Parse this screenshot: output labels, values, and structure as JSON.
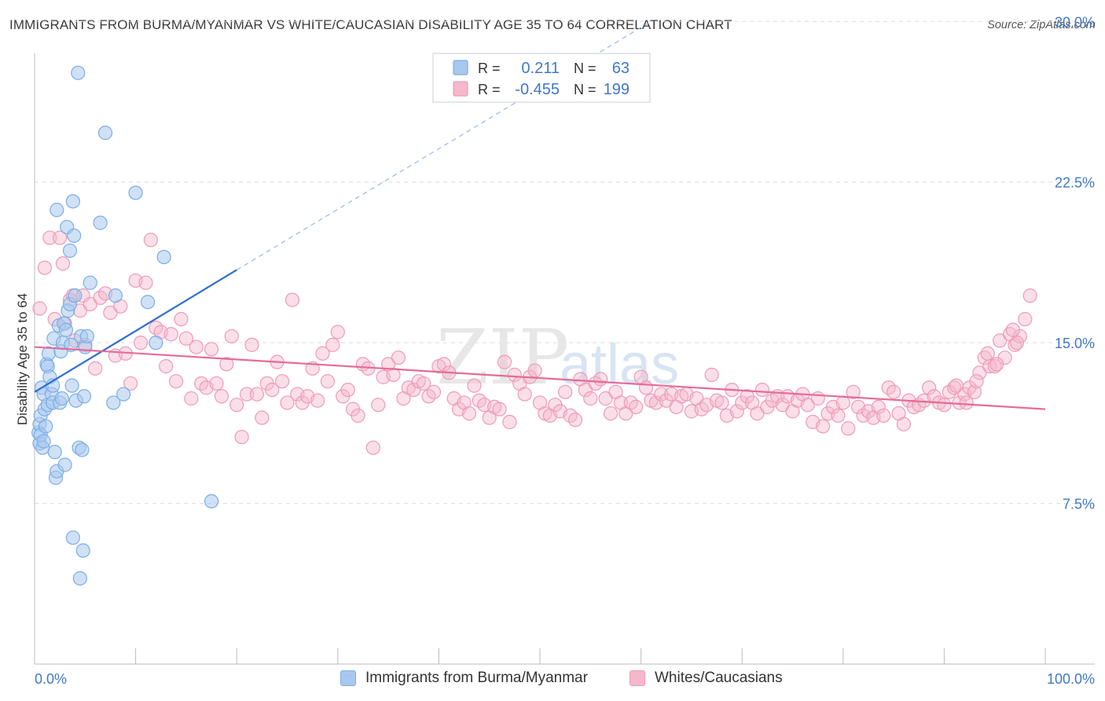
{
  "title": "IMMIGRANTS FROM BURMA/MYANMAR VS WHITE/CAUCASIAN DISABILITY AGE 35 TO 64 CORRELATION CHART",
  "source": "Source: ZipAtlas.com",
  "watermark": {
    "zip": "ZIP",
    "atlas": "atlas"
  },
  "legend_box": {
    "r_label": "R =",
    "n_label": "N =",
    "rows": [
      {
        "r": "0.211",
        "n": "63"
      },
      {
        "r": "-0.455",
        "n": "199"
      }
    ]
  },
  "colors": {
    "blue_fill": "#a9c8ef",
    "blue_stroke": "#7aaee6",
    "blue_line": "#2e6fcf",
    "pink_fill": "#f5b8cb",
    "pink_stroke": "#ef9ab6",
    "pink_line": "#e56b98",
    "axis_text": "#3f78c8",
    "grid": "#dddddd"
  },
  "chart_data": {
    "type": "scatter",
    "title": "IMMIGRANTS FROM BURMA/MYANMAR VS WHITE/CAUCASIAN DISABILITY AGE 35 TO 64 CORRELATION CHART",
    "xlabel": "",
    "ylabel": "Disability Age 35 to 64",
    "xlim": [
      0,
      100
    ],
    "ylim": [
      0,
      31
    ],
    "x_tick_labels": [
      "0.0%",
      "100.0%"
    ],
    "y_ticks": [
      7.5,
      15.0,
      22.5,
      30.0
    ],
    "y_tick_labels": [
      "7.5%",
      "15.0%",
      "22.5%",
      "30.0%"
    ],
    "grid": true,
    "legend_placement": "bottom",
    "series": [
      {
        "name": "Immigrants from Burma/Myanmar",
        "r": 0.211,
        "n": 63,
        "trend": {
          "x": [
            0,
            20
          ],
          "y": [
            12.7,
            18.4
          ]
        },
        "trend_extension": {
          "x": [
            20,
            61
          ],
          "y": [
            18.4,
            30.0
          ]
        },
        "points": [
          [
            0.4,
            10.8
          ],
          [
            0.5,
            11.2
          ],
          [
            0.5,
            10.3
          ],
          [
            0.6,
            10.7
          ],
          [
            0.6,
            11.6
          ],
          [
            0.7,
            12.9
          ],
          [
            0.8,
            10.1
          ],
          [
            0.9,
            10.4
          ],
          [
            0.9,
            12.6
          ],
          [
            1.0,
            11.9
          ],
          [
            1.1,
            11.1
          ],
          [
            1.2,
            14.0
          ],
          [
            1.3,
            12.1
          ],
          [
            1.3,
            13.9
          ],
          [
            1.4,
            14.5
          ],
          [
            1.5,
            13.4
          ],
          [
            1.7,
            12.6
          ],
          [
            1.8,
            13.0
          ],
          [
            1.8,
            12.2
          ],
          [
            1.9,
            15.2
          ],
          [
            2.0,
            9.9
          ],
          [
            2.1,
            8.7
          ],
          [
            2.2,
            9.0
          ],
          [
            2.2,
            21.2
          ],
          [
            2.4,
            15.8
          ],
          [
            2.5,
            12.2
          ],
          [
            2.6,
            14.6
          ],
          [
            2.7,
            12.4
          ],
          [
            2.8,
            15.0
          ],
          [
            2.9,
            15.9
          ],
          [
            3.0,
            9.3
          ],
          [
            3.1,
            15.6
          ],
          [
            3.2,
            20.4
          ],
          [
            3.3,
            16.5
          ],
          [
            3.5,
            16.8
          ],
          [
            3.5,
            19.3
          ],
          [
            3.6,
            14.9
          ],
          [
            3.7,
            13.0
          ],
          [
            3.8,
            5.9
          ],
          [
            3.8,
            21.6
          ],
          [
            3.9,
            20.0
          ],
          [
            4.0,
            17.2
          ],
          [
            4.1,
            12.3
          ],
          [
            4.3,
            27.6
          ],
          [
            4.4,
            10.1
          ],
          [
            4.6,
            15.3
          ],
          [
            4.7,
            10.0
          ],
          [
            4.8,
            5.3
          ],
          [
            4.9,
            12.5
          ],
          [
            4.5,
            4.0
          ],
          [
            5.0,
            14.8
          ],
          [
            5.2,
            15.3
          ],
          [
            5.5,
            17.8
          ],
          [
            6.5,
            20.6
          ],
          [
            7.0,
            24.8
          ],
          [
            7.8,
            12.2
          ],
          [
            8.0,
            17.2
          ],
          [
            8.8,
            12.6
          ],
          [
            10.0,
            22.0
          ],
          [
            11.2,
            16.9
          ],
          [
            12.0,
            15.0
          ],
          [
            12.8,
            19.0
          ],
          [
            17.5,
            7.6
          ]
        ]
      },
      {
        "name": "Whites/Caucasians",
        "r": -0.455,
        "n": 199,
        "trend": {
          "x": [
            0,
            100
          ],
          "y": [
            14.8,
            11.9
          ]
        },
        "points": [
          [
            0.5,
            16.6
          ],
          [
            1.0,
            18.5
          ],
          [
            1.5,
            19.9
          ],
          [
            2.0,
            16.1
          ],
          [
            2.5,
            19.9
          ],
          [
            2.8,
            18.7
          ],
          [
            3.0,
            15.9
          ],
          [
            3.5,
            17.0
          ],
          [
            3.8,
            17.2
          ],
          [
            4.0,
            15.1
          ],
          [
            4.5,
            16.5
          ],
          [
            4.8,
            17.2
          ],
          [
            5.0,
            14.9
          ],
          [
            5.5,
            16.8
          ],
          [
            6.0,
            13.8
          ],
          [
            6.5,
            17.1
          ],
          [
            7.0,
            17.3
          ],
          [
            7.5,
            16.4
          ],
          [
            8.0,
            14.4
          ],
          [
            8.5,
            16.7
          ],
          [
            9.0,
            14.5
          ],
          [
            9.5,
            13.1
          ],
          [
            10.0,
            17.9
          ],
          [
            10.5,
            15.0
          ],
          [
            11.0,
            17.8
          ],
          [
            11.5,
            19.8
          ],
          [
            12.0,
            15.7
          ],
          [
            12.5,
            15.5
          ],
          [
            13.0,
            13.9
          ],
          [
            13.5,
            15.4
          ],
          [
            14.0,
            13.2
          ],
          [
            14.5,
            16.1
          ],
          [
            15.0,
            15.2
          ],
          [
            15.5,
            12.4
          ],
          [
            16.0,
            14.8
          ],
          [
            16.5,
            13.1
          ],
          [
            17.0,
            12.9
          ],
          [
            17.5,
            14.7
          ],
          [
            18.0,
            13.1
          ],
          [
            18.5,
            12.5
          ],
          [
            19.0,
            14.0
          ],
          [
            19.5,
            15.3
          ],
          [
            20.0,
            12.1
          ],
          [
            20.5,
            10.6
          ],
          [
            21.0,
            12.6
          ],
          [
            21.5,
            14.9
          ],
          [
            22.0,
            12.6
          ],
          [
            22.5,
            11.5
          ],
          [
            23.0,
            13.1
          ],
          [
            23.5,
            12.8
          ],
          [
            24.0,
            14.1
          ],
          [
            24.5,
            13.2
          ],
          [
            25.0,
            12.2
          ],
          [
            25.5,
            17.0
          ],
          [
            26.0,
            12.6
          ],
          [
            26.5,
            12.2
          ],
          [
            27.0,
            12.5
          ],
          [
            27.5,
            13.8
          ],
          [
            28.0,
            12.3
          ],
          [
            28.5,
            14.5
          ],
          [
            29.0,
            13.2
          ],
          [
            29.5,
            14.9
          ],
          [
            30.0,
            15.5
          ],
          [
            30.5,
            12.5
          ],
          [
            31.0,
            12.8
          ],
          [
            31.5,
            11.9
          ],
          [
            32.0,
            11.6
          ],
          [
            32.5,
            14.0
          ],
          [
            33.0,
            13.8
          ],
          [
            33.5,
            10.1
          ],
          [
            34.0,
            12.1
          ],
          [
            34.5,
            13.4
          ],
          [
            35.0,
            14.0
          ],
          [
            35.5,
            13.5
          ],
          [
            36.0,
            14.3
          ],
          [
            36.5,
            12.4
          ],
          [
            37.0,
            12.9
          ],
          [
            37.5,
            12.8
          ],
          [
            38.0,
            13.2
          ],
          [
            38.5,
            13.1
          ],
          [
            39.0,
            12.5
          ],
          [
            39.5,
            12.7
          ],
          [
            40.0,
            13.9
          ],
          [
            40.5,
            14.0
          ],
          [
            41.0,
            13.6
          ],
          [
            41.5,
            12.4
          ],
          [
            42.0,
            11.9
          ],
          [
            42.5,
            12.2
          ],
          [
            43.0,
            11.7
          ],
          [
            43.5,
            13.0
          ],
          [
            44.0,
            12.3
          ],
          [
            44.5,
            12.1
          ],
          [
            45.0,
            11.5
          ],
          [
            45.5,
            12.0
          ],
          [
            46.0,
            11.9
          ],
          [
            46.5,
            14.1
          ],
          [
            47.0,
            11.3
          ],
          [
            47.5,
            13.5
          ],
          [
            48.0,
            13.1
          ],
          [
            48.5,
            12.6
          ],
          [
            49.0,
            13.4
          ],
          [
            49.5,
            13.7
          ],
          [
            50.0,
            12.2
          ],
          [
            50.5,
            11.7
          ],
          [
            51.0,
            11.6
          ],
          [
            51.5,
            12.1
          ],
          [
            52.0,
            11.8
          ],
          [
            52.5,
            12.7
          ],
          [
            53.0,
            11.6
          ],
          [
            53.5,
            11.4
          ],
          [
            54.0,
            13.3
          ],
          [
            54.5,
            12.8
          ],
          [
            55.0,
            12.4
          ],
          [
            55.5,
            13.1
          ],
          [
            56.0,
            13.3
          ],
          [
            56.5,
            12.4
          ],
          [
            57.0,
            11.7
          ],
          [
            57.5,
            12.7
          ],
          [
            58.0,
            12.2
          ],
          [
            58.5,
            11.7
          ],
          [
            59.0,
            12.2
          ],
          [
            59.5,
            12.0
          ],
          [
            60.0,
            13.4
          ],
          [
            60.5,
            12.9
          ],
          [
            61.0,
            12.3
          ],
          [
            61.5,
            12.2
          ],
          [
            62.0,
            12.6
          ],
          [
            62.5,
            12.3
          ],
          [
            63.0,
            12.6
          ],
          [
            63.5,
            12.0
          ],
          [
            64.0,
            12.5
          ],
          [
            64.5,
            12.6
          ],
          [
            65.0,
            11.8
          ],
          [
            65.5,
            12.4
          ],
          [
            66.0,
            11.9
          ],
          [
            66.5,
            12.1
          ],
          [
            67.0,
            13.5
          ],
          [
            67.5,
            12.3
          ],
          [
            68.0,
            12.2
          ],
          [
            68.5,
            11.6
          ],
          [
            69.0,
            12.8
          ],
          [
            69.5,
            11.8
          ],
          [
            70.0,
            12.2
          ],
          [
            70.5,
            12.5
          ],
          [
            71.0,
            12.2
          ],
          [
            71.5,
            11.7
          ],
          [
            72.0,
            12.8
          ],
          [
            72.5,
            12.0
          ],
          [
            73.0,
            12.3
          ],
          [
            73.5,
            12.5
          ],
          [
            74.0,
            12.1
          ],
          [
            74.5,
            12.5
          ],
          [
            75.0,
            11.8
          ],
          [
            75.5,
            12.3
          ],
          [
            76.0,
            12.6
          ],
          [
            76.5,
            12.1
          ],
          [
            77.0,
            11.3
          ],
          [
            77.5,
            12.4
          ],
          [
            78.0,
            11.1
          ],
          [
            78.5,
            11.7
          ],
          [
            79.0,
            12.0
          ],
          [
            79.5,
            11.6
          ],
          [
            80.0,
            12.2
          ],
          [
            80.5,
            11.0
          ],
          [
            81.0,
            12.7
          ],
          [
            81.5,
            12.0
          ],
          [
            82.0,
            11.6
          ],
          [
            82.5,
            11.8
          ],
          [
            83.0,
            11.5
          ],
          [
            83.5,
            12.0
          ],
          [
            84.0,
            11.6
          ],
          [
            84.5,
            12.9
          ],
          [
            85.0,
            12.7
          ],
          [
            85.5,
            11.7
          ],
          [
            86.0,
            11.2
          ],
          [
            86.5,
            12.3
          ],
          [
            87.0,
            12.0
          ],
          [
            87.5,
            12.1
          ],
          [
            88.0,
            12.3
          ],
          [
            88.5,
            12.9
          ],
          [
            89.0,
            12.5
          ],
          [
            89.5,
            12.2
          ],
          [
            90.0,
            12.1
          ],
          [
            90.5,
            12.7
          ],
          [
            91.0,
            12.9
          ],
          [
            91.5,
            12.2
          ],
          [
            92.0,
            12.6
          ],
          [
            92.5,
            12.9
          ],
          [
            93.0,
            12.7
          ],
          [
            93.5,
            13.6
          ],
          [
            94.0,
            14.3
          ],
          [
            94.5,
            13.9
          ],
          [
            95.0,
            13.9
          ],
          [
            95.5,
            15.1
          ],
          [
            96.0,
            14.3
          ],
          [
            96.5,
            15.4
          ],
          [
            97.0,
            14.9
          ],
          [
            97.5,
            15.3
          ],
          [
            98.0,
            16.1
          ],
          [
            98.5,
            17.2
          ],
          [
            97.2,
            15.0
          ],
          [
            96.8,
            15.6
          ],
          [
            95.2,
            14.0
          ],
          [
            94.3,
            14.5
          ],
          [
            93.2,
            13.2
          ],
          [
            92.2,
            12.2
          ],
          [
            91.2,
            13.0
          ]
        ]
      }
    ]
  }
}
